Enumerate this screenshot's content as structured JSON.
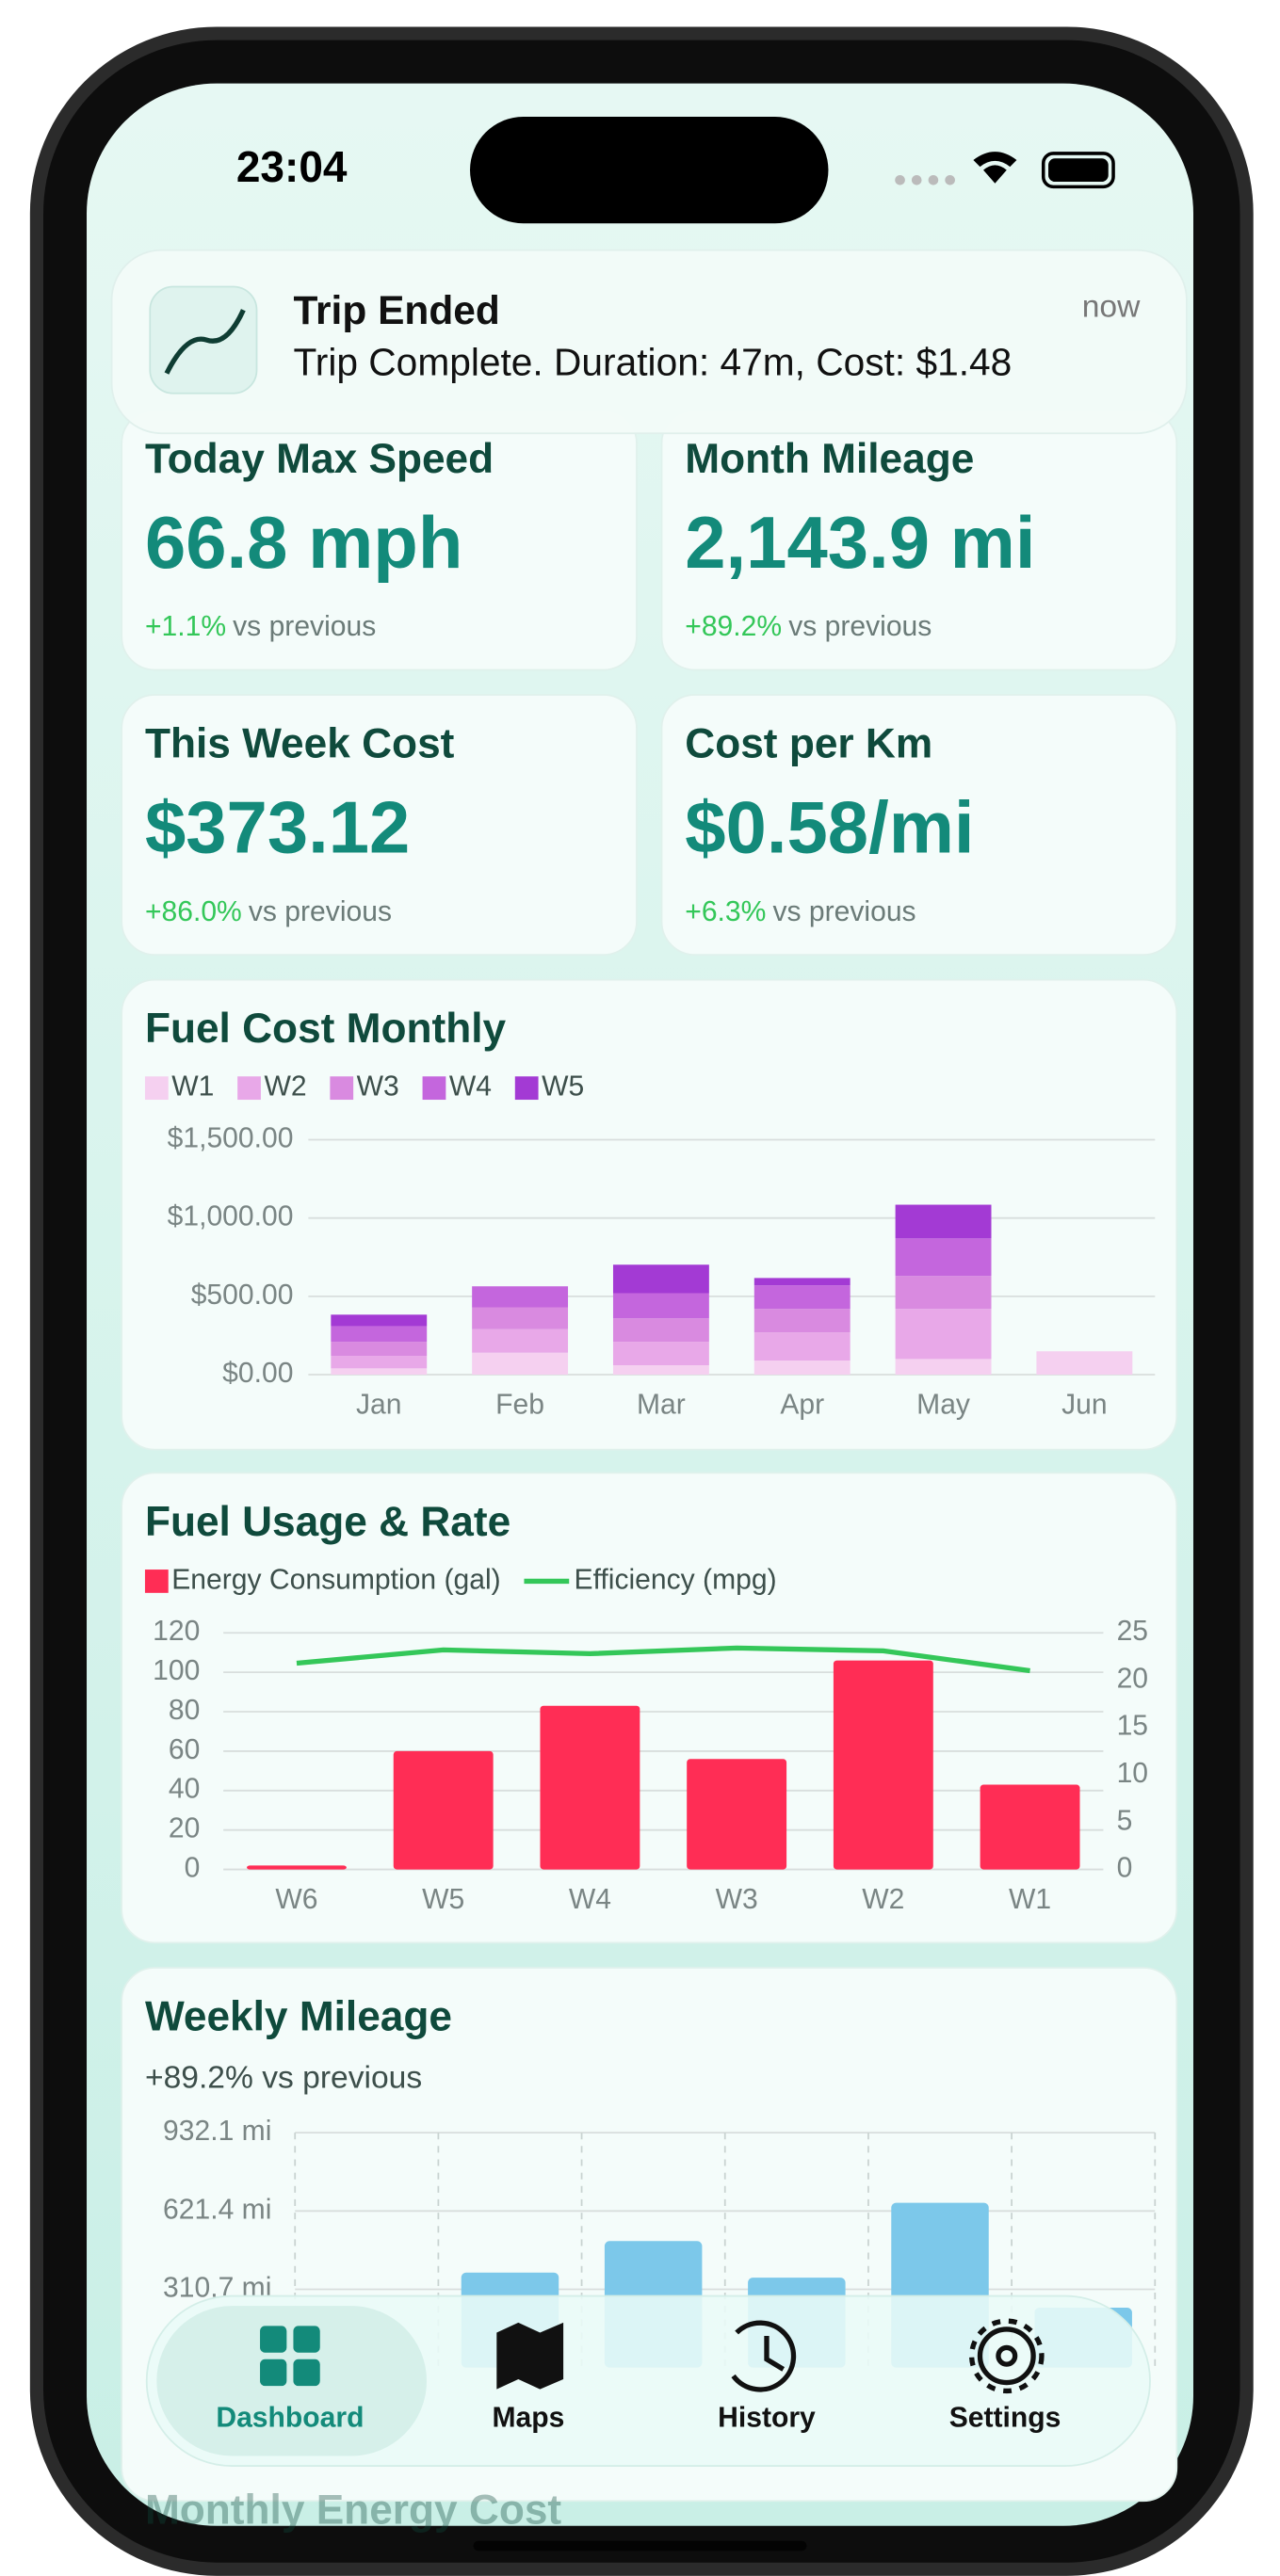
{
  "status": {
    "time": "23:04"
  },
  "notification": {
    "title": "Trip Ended",
    "body": "Trip Complete. Duration: 47m, Cost: $1.48",
    "time": "now"
  },
  "comparison": "vs previous",
  "stat_cards": [
    {
      "title": "Today Max Speed",
      "value": "66.8 mph",
      "change": "+1.1%"
    },
    {
      "title": "Month Mileage",
      "value": "2,143.9 mi",
      "change": "+89.2%"
    },
    {
      "title": "This Week Cost",
      "value": "$373.12",
      "change": "+86.0%"
    },
    {
      "title": "Cost per Km",
      "value": "$0.58/mi",
      "change": "+6.3%"
    }
  ],
  "chart_data": [
    {
      "type": "bar",
      "stacked": true,
      "title": "Fuel Cost Monthly",
      "categories": [
        "Jan",
        "Feb",
        "Mar",
        "Apr",
        "May",
        "Jun"
      ],
      "series": [
        {
          "name": "W1",
          "color": "#f5d0f0",
          "values": [
            40,
            140,
            60,
            90,
            100,
            149
          ]
        },
        {
          "name": "W2",
          "color": "#e8a8e8",
          "values": [
            80,
            150,
            150,
            180,
            320,
            0
          ]
        },
        {
          "name": "W3",
          "color": "#d98ae0",
          "values": [
            90,
            140,
            150,
            150,
            210,
            0
          ]
        },
        {
          "name": "W4",
          "color": "#c466dd",
          "values": [
            100,
            134,
            160,
            150,
            240,
            0
          ]
        },
        {
          "name": "W5",
          "color": "#a33ad4",
          "values": [
            73,
            0,
            182,
            47,
            215,
            0
          ]
        }
      ],
      "ylim": [
        0,
        1500
      ],
      "yticks": [
        {
          "value": 0,
          "label": "$0.00"
        },
        {
          "value": 500,
          "label": "$500.00"
        },
        {
          "value": 1000,
          "label": "$1,000.00"
        },
        {
          "value": 1500,
          "label": "$1,500.00"
        }
      ],
      "grid": true
    },
    {
      "type": "combo",
      "title": "Fuel Usage & Rate",
      "categories": [
        "W6",
        "W5",
        "W4",
        "W3",
        "W2",
        "W1"
      ],
      "series": [
        {
          "name": "Energy Consumption (gal)",
          "color": "#ff2d55",
          "kind": "bar",
          "values": [
            2,
            60,
            83,
            56,
            106,
            43
          ]
        },
        {
          "name": "Efficiency (mpg)",
          "color": "#34c759",
          "kind": "line",
          "axis": "y2",
          "values": [
            21.8,
            23.2,
            22.8,
            23.4,
            23.1,
            21
          ]
        }
      ],
      "ylim": [
        0,
        120
      ],
      "yticks": [
        0,
        20,
        40,
        60,
        80,
        100,
        120
      ],
      "y2lim": [
        0,
        25
      ],
      "y2ticks": [
        0,
        5,
        10,
        15,
        20,
        25
      ],
      "grid": true
    },
    {
      "type": "bar",
      "title": "Weekly Mileage",
      "subtitle": "+89.2% vs previous",
      "categories": [
        null,
        null,
        null,
        null,
        null,
        null
      ],
      "values": [
        0,
        377,
        502,
        357,
        654,
        238
      ],
      "color": "#7cc8ea",
      "ylim": [
        0,
        932.1
      ],
      "yticks": [
        {
          "value": 310.7,
          "label": "310.7 mi"
        },
        {
          "value": 621.4,
          "label": "621.4 mi"
        },
        {
          "value": 932.1,
          "label": "932.1 mi"
        }
      ],
      "grid": true
    }
  ],
  "next_section": {
    "title": "Monthly Energy Cost"
  },
  "tabs": [
    "Dashboard",
    "Maps",
    "History",
    "Settings"
  ]
}
